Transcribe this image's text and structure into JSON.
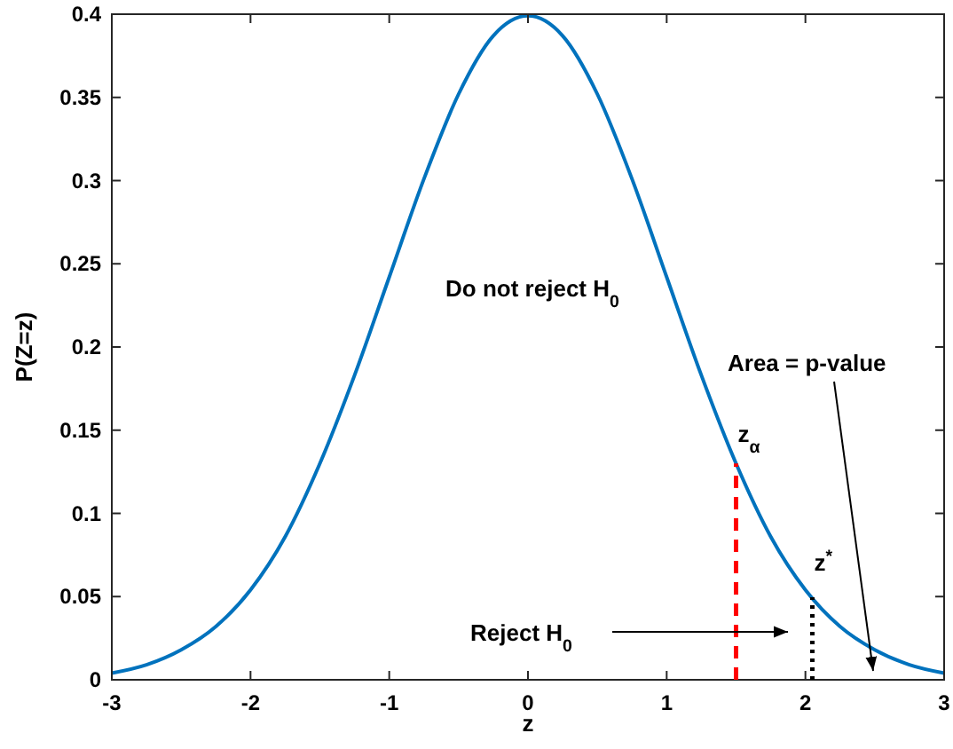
{
  "chart_data": {
    "type": "line",
    "xlabel": "z",
    "ylabel": "P(Z=z)",
    "x": [
      -3,
      -2.75,
      -2.5,
      -2.25,
      -2,
      -1.75,
      -1.5,
      -1.25,
      -1,
      -0.75,
      -0.5,
      -0.25,
      0,
      0.25,
      0.5,
      0.75,
      1,
      1.25,
      1.5,
      1.75,
      2,
      2.25,
      2.5,
      2.75,
      3
    ],
    "series": [
      {
        "color": "#0072bd",
        "values": [
          0.004,
          0.009,
          0.018,
          0.032,
          0.054,
          0.086,
          0.13,
          0.183,
          0.242,
          0.301,
          0.352,
          0.387,
          0.399,
          0.387,
          0.352,
          0.301,
          0.242,
          0.183,
          0.13,
          0.086,
          0.054,
          0.032,
          0.018,
          0.009,
          0.004
        ]
      }
    ],
    "ref_lines": [
      {
        "axis": "x",
        "value": 1.5,
        "label": "z$_{α}$",
        "color": "#ff0000",
        "line_style": "dashed"
      },
      {
        "axis": "x",
        "value": 2.05,
        "label": "z$^{*}$",
        "color": "#000000",
        "line_style": "dotted"
      }
    ],
    "xlim": [
      -3,
      3
    ],
    "ylim": [
      0,
      0.4
    ],
    "xticks": [
      -3,
      -2,
      -1,
      0,
      1,
      2,
      3
    ],
    "yticks": [
      0,
      0.05,
      0.1,
      0.15,
      0.2,
      0.25,
      0.3,
      0.35,
      0.4
    ],
    "grid": false,
    "marker": "none",
    "line_style": "solid",
    "annotations": [
      "Do not reject H$_{0}$",
      "Reject H$_{0}$",
      "Area = p-value"
    ]
  }
}
